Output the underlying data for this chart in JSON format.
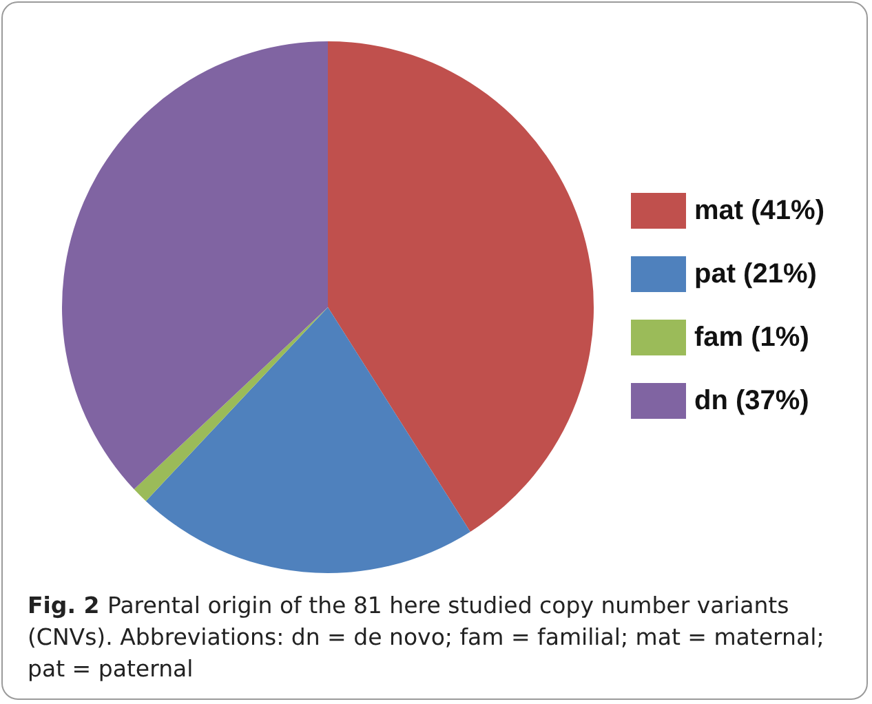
{
  "chart_data": {
    "type": "pie",
    "categories": [
      "mat (41%)",
      "pat (21%)",
      "fam (1%)",
      "dn (37%)"
    ],
    "values": [
      41,
      21,
      1,
      37
    ],
    "colors": [
      "#c0504d",
      "#4f81bd",
      "#9bbb59",
      "#8064a2"
    ],
    "legend": "right",
    "annotations": [
      "Fig. 2",
      "Parental origin of the 81 here studied copy number variants (CNVs). Abbreviations: dn = de novo; fam = familial; mat = maternal; pat = paternal"
    ]
  }
}
